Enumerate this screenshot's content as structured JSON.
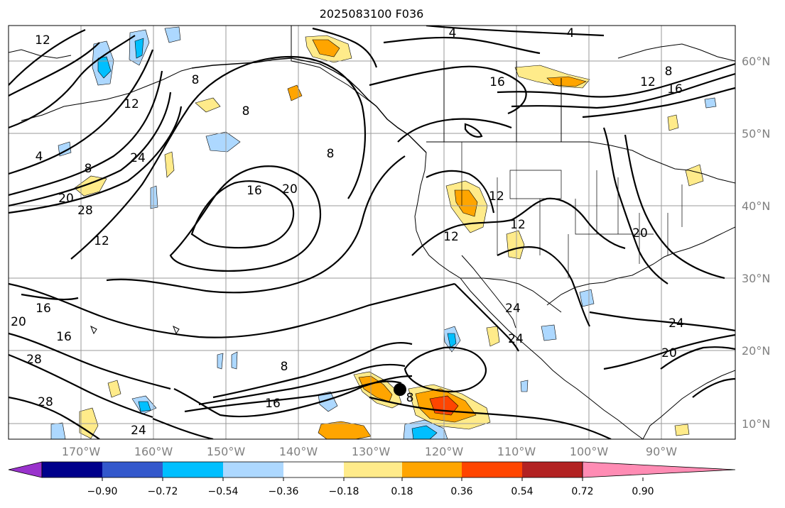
{
  "title": "2025083100 F036",
  "longitude_labels": [
    "170°W",
    "160°W",
    "150°W",
    "140°W",
    "130°W",
    "120°W",
    "110°W",
    "100°W",
    "90°W"
  ],
  "latitude_labels": [
    "60°N",
    "50°N",
    "40°N",
    "30°N",
    "20°N",
    "10°N"
  ],
  "colorbar": {
    "tick_labels": [
      "−0.90",
      "−0.72",
      "−0.54",
      "−0.36",
      "−0.18",
      "0.18",
      "0.36",
      "0.54",
      "0.72",
      "0.90"
    ],
    "colors": [
      "#9932cc",
      "#00008b",
      "#3358cc",
      "#00bfff",
      "#add8ff",
      "#ffffff",
      "#ffeb8a",
      "#ffa500",
      "#ff4500",
      "#b22222",
      "#ff8cb4"
    ]
  },
  "contour_labels": [
    "12",
    "4",
    "4",
    "8",
    "16",
    "12",
    "16",
    "8",
    "8",
    "4",
    "12",
    "24",
    "8",
    "20",
    "28",
    "12",
    "16",
    "20",
    "8",
    "12",
    "12",
    "12",
    "20",
    "16",
    "20",
    "16",
    "28",
    "8",
    "16",
    "28",
    "24",
    "24",
    "20",
    "24",
    "24",
    "8"
  ],
  "colors": {
    "grid": "#9a9a9a",
    "axis_text": "#808080",
    "contour": "#000000"
  }
}
